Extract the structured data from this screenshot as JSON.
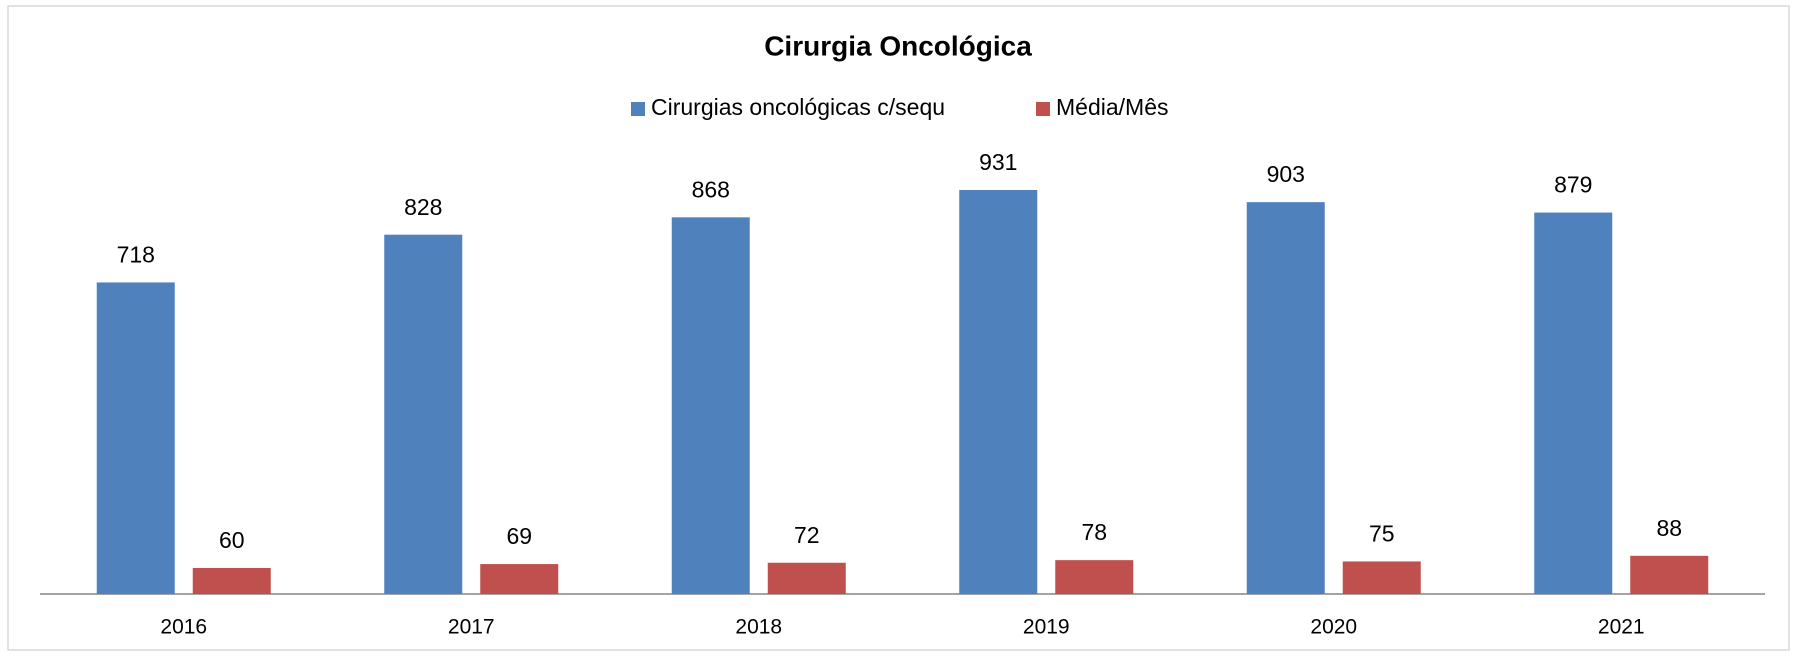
{
  "chart_data": {
    "type": "bar",
    "title": "Cirurgia Oncológica",
    "categories": [
      "2016",
      "2017",
      "2018",
      "2019",
      "2020",
      "2021"
    ],
    "series": [
      {
        "name": "Cirurgias oncológicas c/sequ",
        "color": "#4f81bd",
        "values": [
          718,
          828,
          868,
          931,
          903,
          879
        ]
      },
      {
        "name": "Média/Mês",
        "color": "#c0504d",
        "values": [
          60,
          69,
          72,
          78,
          75,
          88
        ]
      }
    ],
    "legend": "top"
  }
}
